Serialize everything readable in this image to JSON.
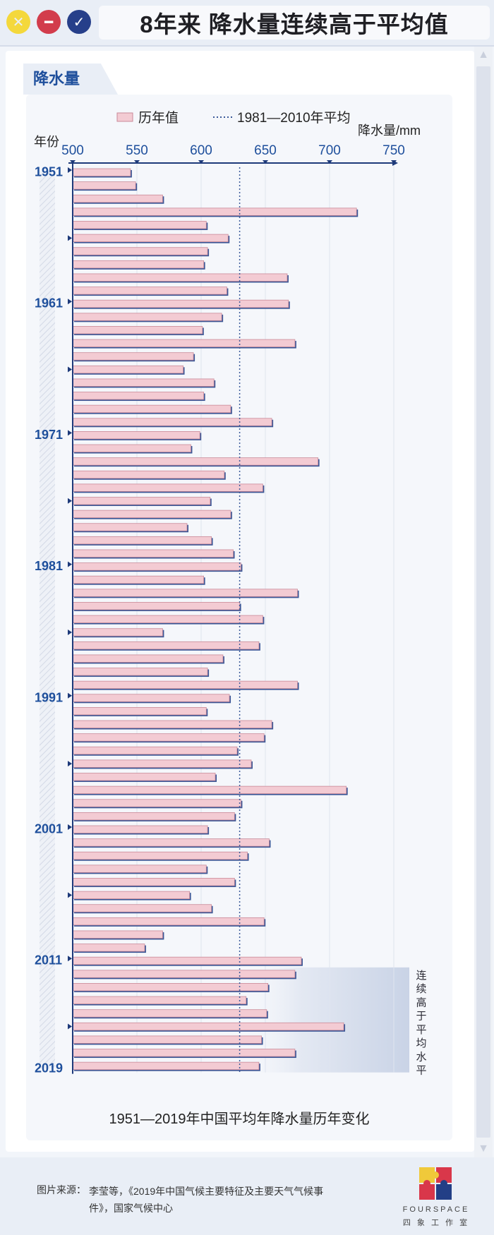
{
  "window": {
    "title": "8年来 降水量连续高于平均值"
  },
  "section": {
    "tab_label": "降水量"
  },
  "chart_data": {
    "type": "bar",
    "orientation": "horizontal",
    "title": "1951—2019年中国平均年降水量历年变化",
    "xlabel": "降水量/mm",
    "ylabel": "年份",
    "xlim": [
      500,
      750
    ],
    "xticks": [
      500,
      550,
      600,
      650,
      700,
      750
    ],
    "year_labels": [
      "1951",
      "1961",
      "1971",
      "1981",
      "1991",
      "2001",
      "2011",
      "2019"
    ],
    "legend": [
      "历年值",
      "1981—2010年平均"
    ],
    "legend_position": "top",
    "reference_line": {
      "name": "1981—2010年平均",
      "value": 630,
      "style": "dotted"
    },
    "highlight": {
      "years": [
        2012,
        2019
      ],
      "label": "连续高于平均水平"
    },
    "grid": true,
    "series": [
      {
        "name": "历年值",
        "x": [
          1951,
          1952,
          1953,
          1954,
          1955,
          1956,
          1957,
          1958,
          1959,
          1960,
          1961,
          1962,
          1963,
          1964,
          1965,
          1966,
          1967,
          1968,
          1969,
          1970,
          1971,
          1972,
          1973,
          1974,
          1975,
          1976,
          1977,
          1978,
          1979,
          1980,
          1981,
          1982,
          1983,
          1984,
          1985,
          1986,
          1987,
          1988,
          1989,
          1990,
          1991,
          1992,
          1993,
          1994,
          1995,
          1996,
          1997,
          1998,
          1999,
          2000,
          2001,
          2002,
          2003,
          2004,
          2005,
          2006,
          2007,
          2008,
          2009,
          2010,
          2011,
          2012,
          2013,
          2014,
          2015,
          2016,
          2017,
          2018,
          2019
        ],
        "values": [
          545,
          549,
          570,
          721,
          604,
          621,
          605,
          602,
          667,
          620,
          668,
          616,
          601,
          673,
          594,
          586,
          610,
          602,
          623,
          655,
          599,
          592,
          691,
          618,
          648,
          607,
          623,
          589,
          608,
          625,
          631,
          602,
          675,
          630,
          648,
          570,
          645,
          617,
          605,
          675,
          622,
          604,
          655,
          649,
          628,
          639,
          611,
          713,
          631,
          626,
          605,
          653,
          636,
          604,
          626,
          591,
          608,
          649,
          570,
          556,
          678,
          673,
          652,
          635,
          651,
          711,
          647,
          673,
          645
        ]
      }
    ]
  },
  "footer": {
    "source_label": "图片来源：",
    "source_text": "李莹等，《2019年中国气候主要特征及主要天气气候事件》，国家气候中心",
    "logo_name": "FOURSPACE",
    "logo_sub": "四 象 工 作 室"
  },
  "colors": {
    "bar_fill": "#f3cbd3",
    "bar_stroke": "#c98a98",
    "bar_shadow": "#3b5797",
    "axis": "#1e3a7a",
    "tick_text": "#1e4f9c",
    "highlight": "#e1e6f2"
  }
}
